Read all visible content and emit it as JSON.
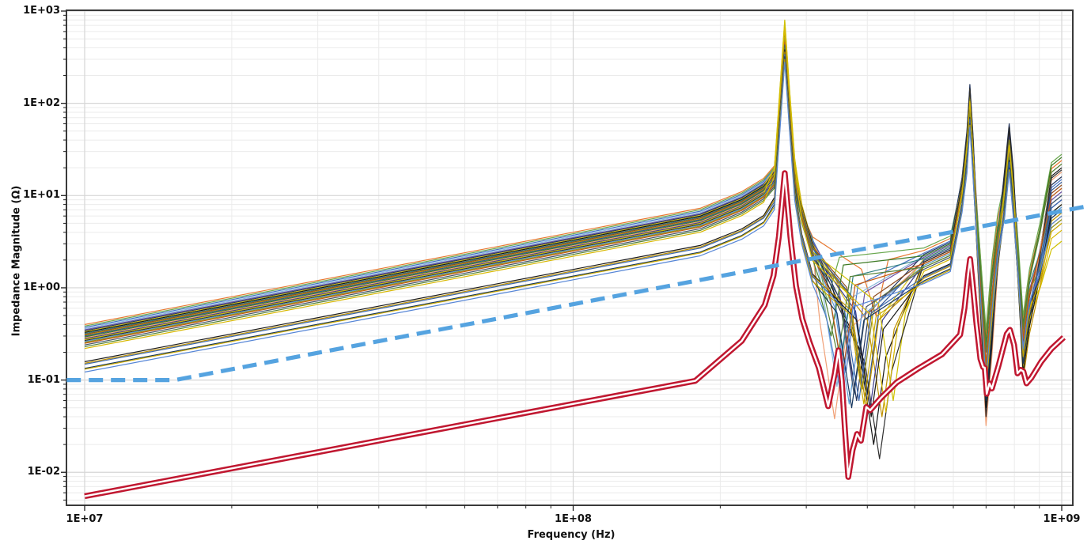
{
  "figure": {
    "background": "#ffffff",
    "plot_border_color": "#3a3a3a",
    "grid_major_color": "#d6d6d6",
    "grid_minor_color": "#ebebeb",
    "tick_color": "#222222",
    "text_color": "#111111"
  },
  "axes": {
    "x": {
      "title": "Frequency (Hz)",
      "scale": "log",
      "ticks": [
        {
          "exp": 7,
          "label": "1E+07"
        },
        {
          "exp": 8,
          "label": "1E+08"
        },
        {
          "exp": 9,
          "label": "1E+09"
        }
      ]
    },
    "y": {
      "title": "Impedance Magnitude (Ω)",
      "scale": "log",
      "ticks": [
        {
          "exp": 3,
          "label": "1E+03"
        },
        {
          "exp": 2,
          "label": "1E+02"
        },
        {
          "exp": 1,
          "label": "1E+01"
        },
        {
          "exp": 0,
          "label": "1E+00"
        },
        {
          "exp": -1,
          "label": "1E-01"
        },
        {
          "exp": -2,
          "label": "1E-02"
        }
      ]
    }
  },
  "chart_data": {
    "type": "line",
    "title": "",
    "xlabel": "Frequency (Hz)",
    "ylabel": "Impedance Magnitude (Ω)",
    "x_scale": "log",
    "y_scale": "log",
    "xlim": [
      9200000.0,
      1050000000.0
    ],
    "ylim": [
      0.0044,
      1020.0
    ],
    "grid": true,
    "legend": "none",
    "series": [
      {
        "name": "target-impedance-mask",
        "style": "dashed",
        "color": "#55a3e0",
        "width": 5.2,
        "dash": [
          18,
          10
        ],
        "points_log10f_ohm": [
          [
            6.963,
            0.1
          ],
          [
            7.185,
            0.1
          ],
          [
            9.0599,
            7.8
          ]
        ]
      },
      {
        "name": "selected-impedance-curve",
        "style": "outlined",
        "color": "#c01730",
        "core_color": "#ffffff",
        "outer_width": 7.4,
        "core_width": 2.4,
        "points_log10f_ohm": [
          [
            7.0,
            0.0055
          ],
          [
            8.25,
            0.098
          ],
          [
            8.345,
            0.265
          ],
          [
            8.392,
            0.65
          ],
          [
            8.41,
            1.35
          ],
          [
            8.421,
            3.6
          ],
          [
            8.433,
            17.5
          ],
          [
            8.4445,
            3.6
          ],
          [
            8.456,
            1.05
          ],
          [
            8.469,
            0.46
          ],
          [
            8.484,
            0.255
          ],
          [
            8.503,
            0.135
          ],
          [
            8.522,
            0.052
          ],
          [
            8.5355,
            0.118
          ],
          [
            8.543,
            0.21
          ],
          [
            8.55,
            0.098
          ],
          [
            8.5565,
            0.028
          ],
          [
            8.563,
            0.0089
          ],
          [
            8.572,
            0.0175
          ],
          [
            8.581,
            0.026
          ],
          [
            8.589,
            0.022
          ],
          [
            8.6,
            0.051
          ],
          [
            8.608,
            0.047
          ],
          [
            8.63,
            0.064
          ],
          [
            8.662,
            0.094
          ],
          [
            8.705,
            0.132
          ],
          [
            8.755,
            0.19
          ],
          [
            8.792,
            0.31
          ],
          [
            8.801,
            0.6
          ],
          [
            8.8085,
            1.4
          ],
          [
            8.8125,
            2.05
          ],
          [
            8.8175,
            1.15
          ],
          [
            8.825,
            0.43
          ],
          [
            8.8335,
            0.17
          ],
          [
            8.839,
            0.138
          ],
          [
            8.8425,
            0.136
          ],
          [
            8.8465,
            0.071
          ],
          [
            8.852,
            0.092
          ],
          [
            8.857,
            0.081
          ],
          [
            8.871,
            0.145
          ],
          [
            8.8875,
            0.315
          ],
          [
            8.894,
            0.35
          ],
          [
            8.9025,
            0.24
          ],
          [
            8.9095,
            0.118
          ],
          [
            8.916,
            0.129
          ],
          [
            8.9215,
            0.124
          ],
          [
            8.928,
            0.092
          ],
          [
            8.938,
            0.106
          ],
          [
            8.958,
            0.158
          ],
          [
            8.979,
            0.218
          ],
          [
            9.004,
            0.29
          ]
        ]
      },
      {
        "name": "impedance-ensemble",
        "style": "thin-multi",
        "width": 1.2,
        "start_log10f": 7.0,
        "end_log10f": 9.0,
        "peak1_log10f": 8.433,
        "peak2_log10f": 8.812,
        "peak3_log10f": 8.8925,
        "curve_params_legend": [
          "z0_ohm_at_10MHz",
          "peak1_ohm",
          "dip1_log10f",
          "dip1_min_ohm",
          "shoulder_ohm",
          "peak2_ohm",
          "dip2_min_ohm",
          "peak3_ohm",
          "dip3_min_ohm",
          "end_ohm_at_1GHz",
          "color"
        ],
        "curves": [
          [
            0.4,
            520,
            8.62,
            0.5,
            3.2,
            120,
            0.3,
            40,
            0.45,
            24,
            "#e8782f"
          ],
          [
            0.385,
            480,
            8.52,
            0.72,
            3.4,
            100,
            0.35,
            45,
            0.5,
            28,
            "#6aa84f"
          ],
          [
            0.372,
            560,
            8.558,
            0.12,
            3.0,
            150,
            0.12,
            55,
            0.25,
            15,
            "#4472c4"
          ],
          [
            0.36,
            430,
            8.54,
            0.085,
            2.8,
            90,
            0.1,
            35,
            0.2,
            12,
            "#85b7dc"
          ],
          [
            0.35,
            500,
            8.572,
            0.1,
            2.7,
            110,
            0.15,
            40,
            0.3,
            11,
            "#6a51a3"
          ],
          [
            0.342,
            620,
            8.58,
            0.06,
            2.9,
            160,
            0.08,
            60,
            0.18,
            16,
            "#23355c"
          ],
          [
            0.335,
            780,
            8.6,
            0.05,
            2.6,
            140,
            0.06,
            50,
            0.12,
            8,
            "#d8c31c"
          ],
          [
            0.328,
            600,
            8.615,
            0.02,
            2.5,
            130,
            0.05,
            55,
            0.15,
            20,
            "#141414"
          ],
          [
            0.32,
            450,
            8.548,
            0.15,
            2.6,
            95,
            0.2,
            30,
            0.35,
            10,
            "#2e7d7d"
          ],
          [
            0.313,
            520,
            8.59,
            0.09,
            2.4,
            105,
            0.12,
            38,
            0.25,
            13,
            "#8c4b1f"
          ],
          [
            0.306,
            700,
            8.632,
            0.04,
            2.3,
            125,
            0.05,
            45,
            0.1,
            6,
            "#bf9000"
          ],
          [
            0.3,
            540,
            8.602,
            0.07,
            2.5,
            115,
            0.09,
            42,
            0.2,
            14,
            "#2f5597"
          ],
          [
            0.293,
            470,
            8.528,
            0.3,
            2.8,
            85,
            0.25,
            33,
            0.4,
            26,
            "#3d7a23"
          ],
          [
            0.286,
            430,
            8.535,
            0.038,
            2.4,
            80,
            0.032,
            28,
            0.18,
            18,
            "#f0a076"
          ],
          [
            0.28,
            580,
            8.608,
            0.05,
            2.3,
            135,
            0.06,
            48,
            0.15,
            9,
            "#3c3c8f"
          ],
          [
            0.274,
            800,
            8.655,
            0.06,
            2.2,
            120,
            0.08,
            36,
            0.2,
            3.2,
            "#cfc000"
          ],
          [
            0.268,
            560,
            8.627,
            0.014,
            2.4,
            145,
            0.04,
            52,
            0.12,
            19,
            "#2d2d2d"
          ],
          [
            0.262,
            490,
            8.565,
            0.055,
            2.2,
            100,
            0.1,
            34,
            0.22,
            7.5,
            "#5b9bd5"
          ],
          [
            0.256,
            520,
            8.592,
            0.08,
            2.1,
            110,
            0.12,
            40,
            0.3,
            5.5,
            "#8f8f1a"
          ],
          [
            0.25,
            460,
            8.552,
            0.12,
            2.3,
            90,
            0.15,
            30,
            0.28,
            12,
            "#c55a11"
          ],
          [
            0.24,
            430,
            8.575,
            0.07,
            2.0,
            95,
            0.08,
            32,
            0.2,
            10,
            "#44546a"
          ],
          [
            0.23,
            400,
            8.542,
            0.18,
            2.1,
            75,
            0.22,
            26,
            0.38,
            22,
            "#548235"
          ],
          [
            0.22,
            650,
            8.64,
            0.045,
            1.9,
            105,
            0.06,
            35,
            0.14,
            4.2,
            "#d8b800"
          ],
          [
            0.158,
            380,
            8.61,
            0.04,
            1.7,
            70,
            0.05,
            24,
            0.12,
            8,
            "#1a1a1a"
          ],
          [
            0.152,
            360,
            8.6,
            0.05,
            1.6,
            65,
            0.07,
            22,
            0.16,
            6.5,
            "#c09100"
          ],
          [
            0.148,
            340,
            8.585,
            0.06,
            1.65,
            68,
            0.09,
            23,
            0.2,
            9,
            "#3a66ad"
          ],
          [
            0.134,
            320,
            8.57,
            0.05,
            1.5,
            60,
            0.06,
            20,
            0.15,
            7,
            "#17375e"
          ],
          [
            0.131,
            300,
            8.595,
            0.055,
            1.45,
            58,
            0.08,
            19,
            0.18,
            5,
            "#caa800"
          ],
          [
            0.122,
            280,
            8.548,
            0.07,
            1.4,
            55,
            0.1,
            18,
            0.22,
            6,
            "#5585d6"
          ]
        ]
      }
    ]
  }
}
